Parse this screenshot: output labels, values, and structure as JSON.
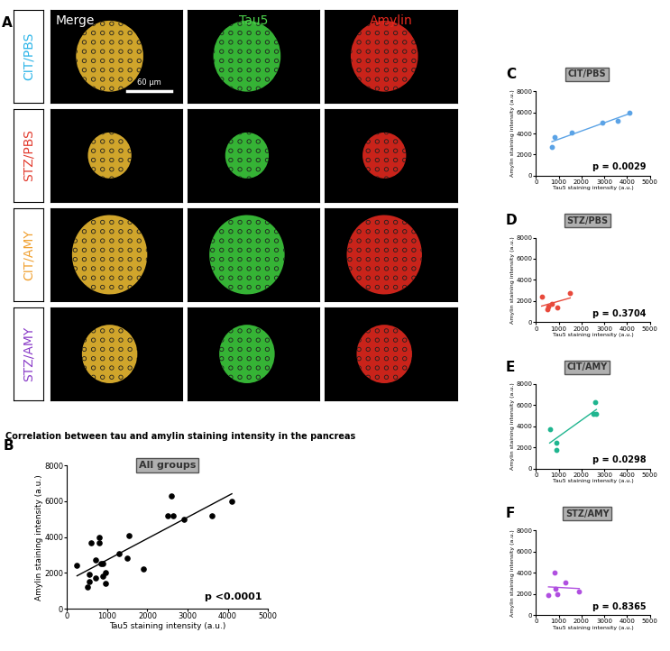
{
  "image_panel": {
    "panel": "A",
    "scale_bar": "60 µm",
    "columns": [
      {
        "name": "Merge",
        "color": "#ffffff"
      },
      {
        "name": "Tau5",
        "color": "#4cd24c"
      },
      {
        "name": "Amylin",
        "color": "#e8281e"
      }
    ],
    "rows": [
      {
        "name": "CIT/PBS",
        "color": "#2ab4e8"
      },
      {
        "name": "STZ/PBS",
        "color": "#e23b2e"
      },
      {
        "name": "CIT/AMY",
        "color": "#f0a030"
      },
      {
        "name": "STZ/AMY",
        "color": "#8a3cc8"
      }
    ]
  },
  "chart_data": [
    {
      "type": "scatter",
      "panel": "B",
      "title": "Correlation between tau and amylin staining intensity in the pancreas",
      "subtitle": "All groups",
      "annotation": "p <0.0001",
      "xlabel": "Tau5 staining intensity (a.u.)",
      "ylabel": "Amylin staining intensity (a.u.)",
      "x": [
        700,
        800,
        1550,
        2900,
        3600,
        4100,
        250,
        500,
        550,
        700,
        950,
        1500,
        600,
        900,
        900,
        2500,
        2600,
        2650,
        550,
        800,
        850,
        950,
        1300,
        1900
      ],
      "values": [
        2700,
        3700,
        4100,
        5000,
        5200,
        6000,
        2400,
        1200,
        1500,
        1700,
        1400,
        2800,
        3700,
        2500,
        1800,
        5200,
        6300,
        5200,
        1900,
        4000,
        2500,
        2000,
        3100,
        2200
      ],
      "color": "#000000",
      "xlim": [
        0,
        5000
      ],
      "ylim": [
        0,
        8000
      ],
      "xticks": [
        0,
        1000,
        2000,
        3000,
        4000,
        5000
      ],
      "yticks": [
        0,
        2000,
        4000,
        6000,
        8000
      ]
    },
    {
      "type": "scatter",
      "panel": "C",
      "subtitle": "CIT/PBS",
      "annotation": "p = 0.0029",
      "xlabel": "Tau5 staining intensity (a.u.)",
      "ylabel": "Amylin staining intensity (a.u.)",
      "x": [
        700,
        800,
        1550,
        2900,
        3600,
        4100
      ],
      "values": [
        2700,
        3700,
        4100,
        5000,
        5200,
        6000
      ],
      "color": "#5ba3e6",
      "xlim": [
        0,
        5000
      ],
      "ylim": [
        0,
        8000
      ],
      "xticks": [
        0,
        1000,
        2000,
        3000,
        4000,
        5000
      ],
      "yticks": [
        0,
        2000,
        4000,
        6000,
        8000
      ]
    },
    {
      "type": "scatter",
      "panel": "D",
      "subtitle": "STZ/PBS",
      "annotation": "p = 0.3704",
      "xlabel": "Tau5 staining intensity (a.u.)",
      "ylabel": "Amylin staining intensity (a.u.)",
      "x": [
        250,
        500,
        550,
        700,
        950,
        1500
      ],
      "values": [
        2400,
        1200,
        1500,
        1700,
        1400,
        2800
      ],
      "color": "#e8493b",
      "xlim": [
        0,
        5000
      ],
      "ylim": [
        0,
        8000
      ],
      "xticks": [
        0,
        1000,
        2000,
        3000,
        4000,
        5000
      ],
      "yticks": [
        0,
        2000,
        4000,
        6000,
        8000
      ]
    },
    {
      "type": "scatter",
      "panel": "E",
      "subtitle": "CIT/AMY",
      "annotation": "p = 0.0298",
      "xlabel": "Tau5 staining intensity (a.u.)",
      "ylabel": "Amylin staining intensity (a.u.)",
      "x": [
        600,
        900,
        900,
        2500,
        2600,
        2650
      ],
      "values": [
        3700,
        2500,
        1800,
        5200,
        6300,
        5200
      ],
      "color": "#1fb58f",
      "xlim": [
        0,
        5000
      ],
      "ylim": [
        0,
        8000
      ],
      "xticks": [
        0,
        1000,
        2000,
        3000,
        4000,
        5000
      ],
      "yticks": [
        0,
        2000,
        4000,
        6000,
        8000
      ]
    },
    {
      "type": "scatter",
      "panel": "F",
      "subtitle": "STZ/AMY",
      "annotation": "p = 0.8365",
      "xlabel": "Tau5 staining intensity (a.u.)",
      "ylabel": "Amylin staining intensity (a.u.)",
      "x": [
        550,
        800,
        850,
        950,
        1300,
        1900
      ],
      "values": [
        1900,
        4000,
        2500,
        2000,
        3100,
        2200
      ],
      "color": "#b04fe0",
      "xlim": [
        0,
        5000
      ],
      "ylim": [
        0,
        8000
      ],
      "xticks": [
        0,
        1000,
        2000,
        3000,
        4000,
        5000
      ],
      "yticks": [
        0,
        2000,
        4000,
        6000,
        8000
      ]
    }
  ]
}
